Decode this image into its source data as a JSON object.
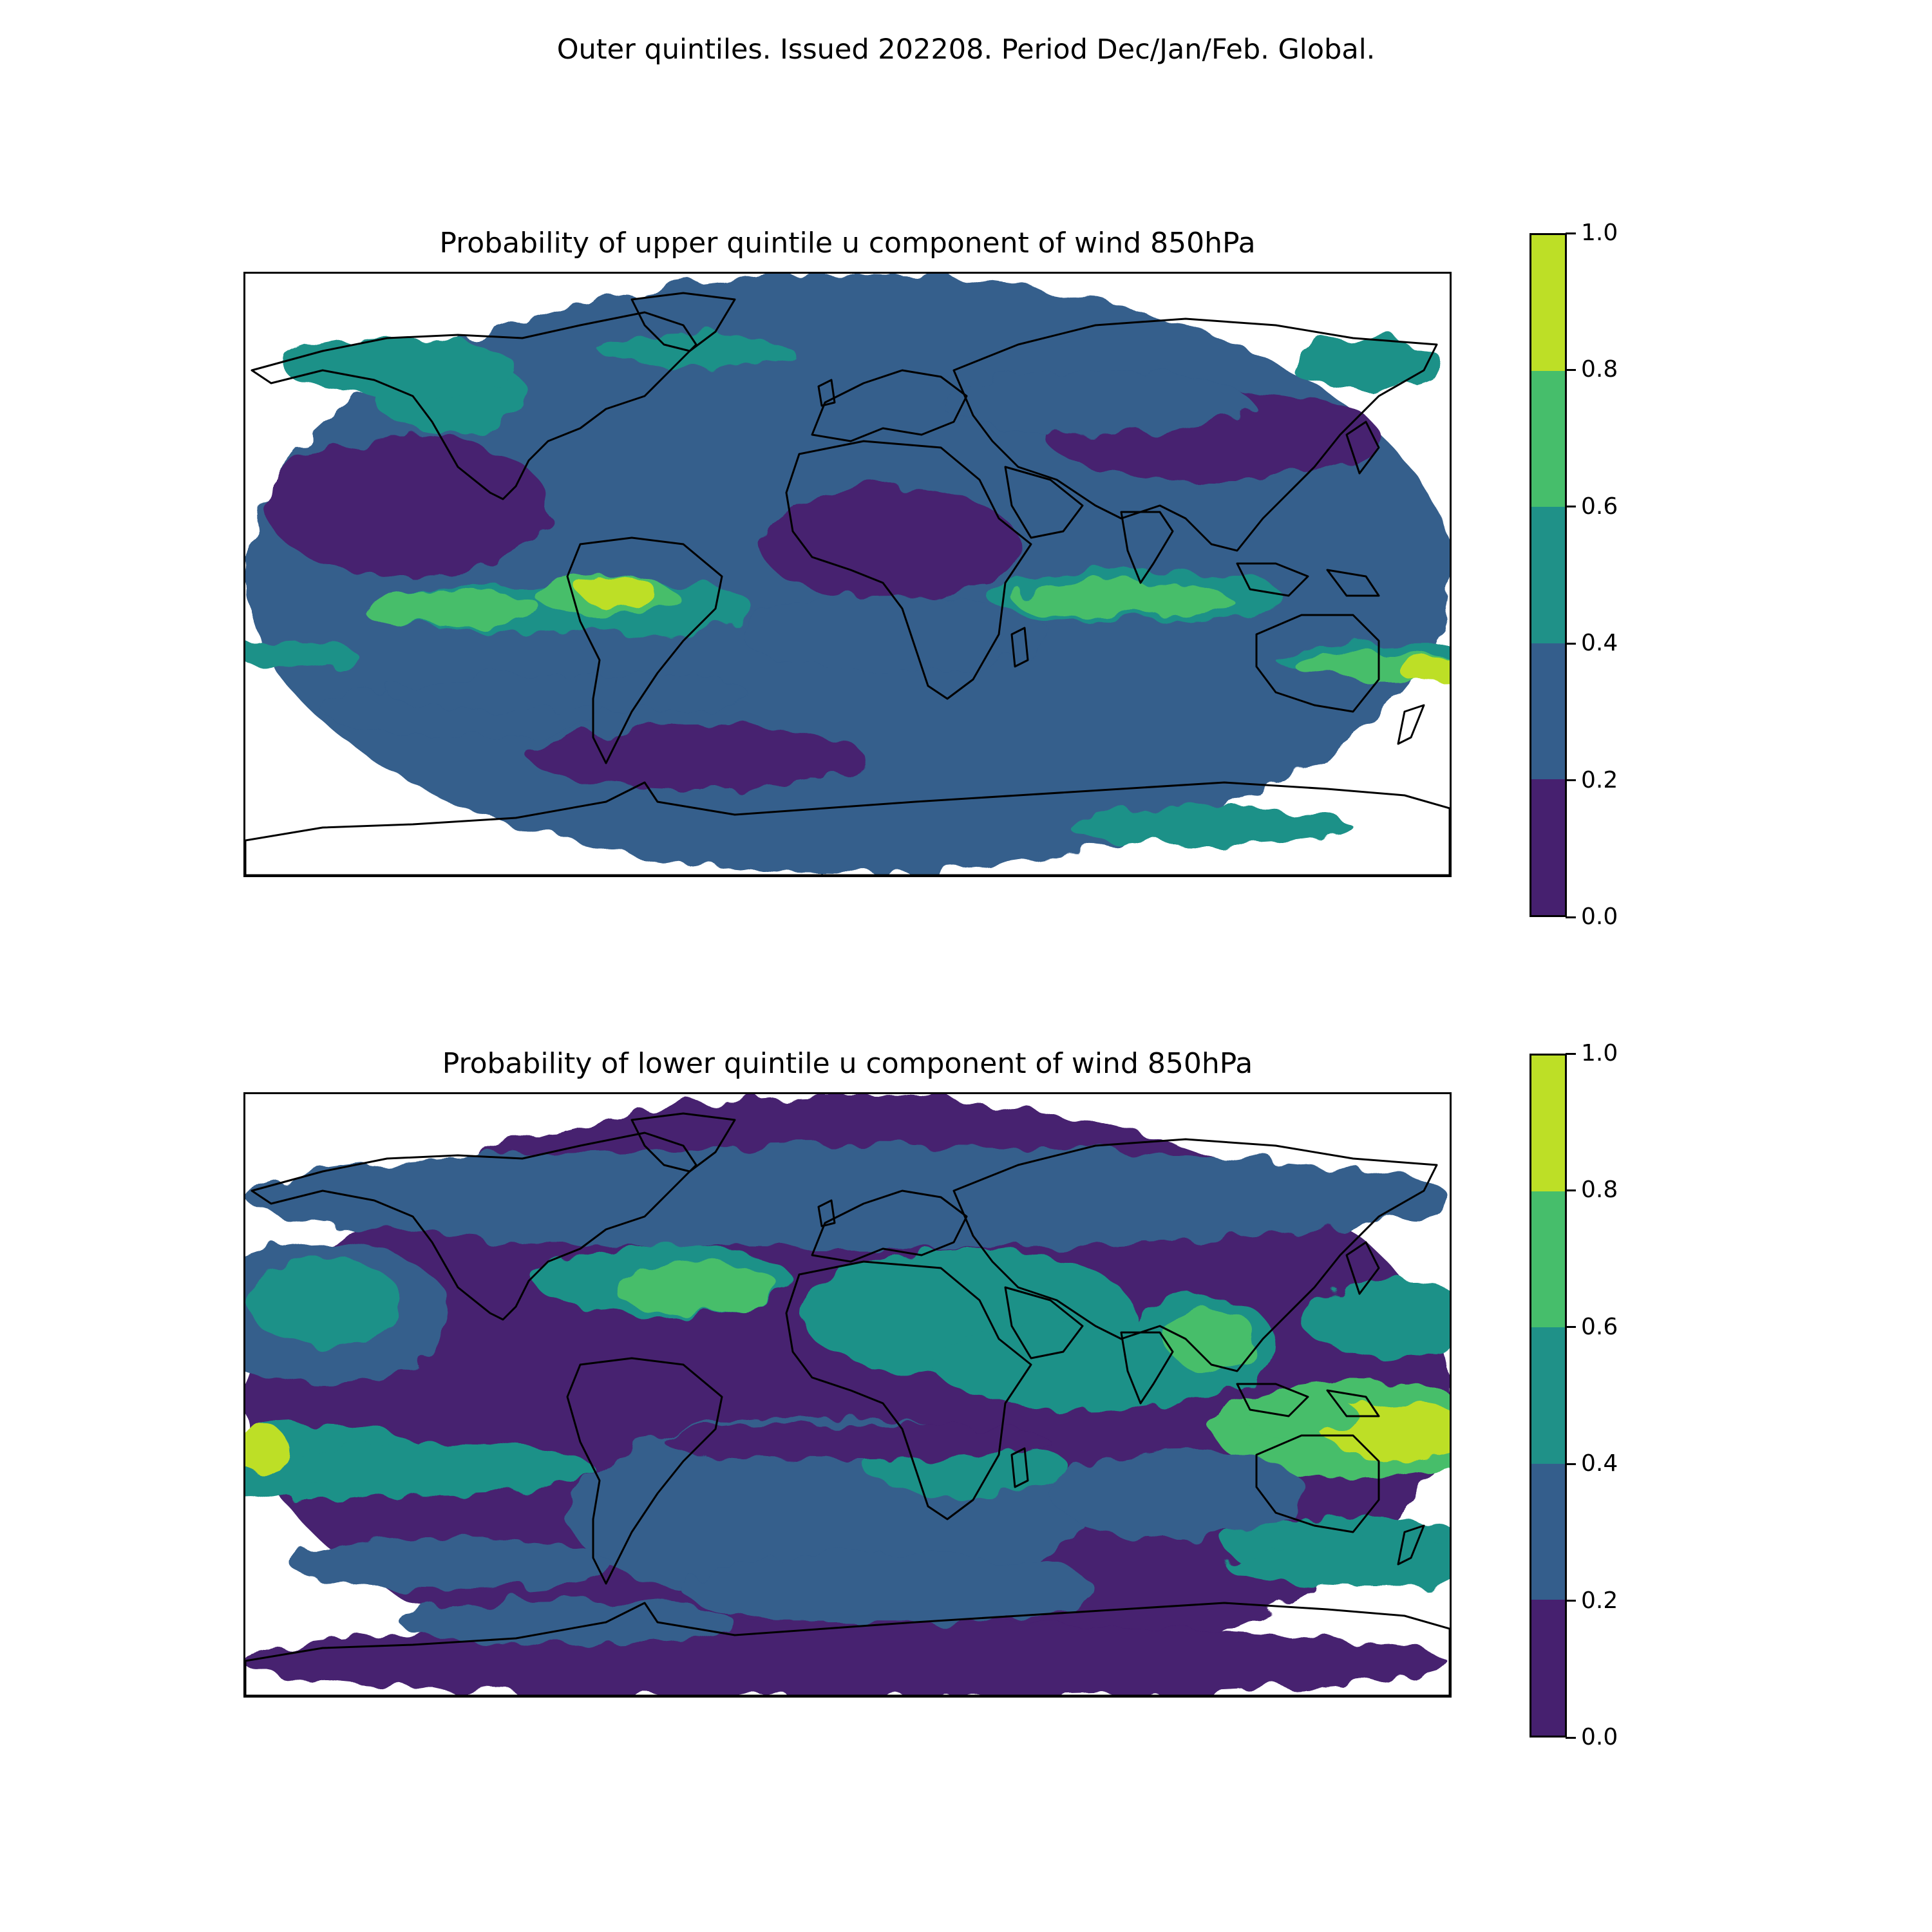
{
  "figure": {
    "title": "Outer quintiles. Issued 202208. Period Dec/Jan/Feb. Global."
  },
  "colorbar": {
    "ticks": [
      "0.0",
      "0.2",
      "0.4",
      "0.6",
      "0.8",
      "1.0"
    ],
    "levels": [
      0.0,
      0.2,
      0.4,
      0.6,
      0.8,
      1.0
    ],
    "colors": [
      "#46206f",
      "#345e8c",
      "#1f9188",
      "#46be6b",
      "#bddf26"
    ]
  },
  "chart_data": [
    {
      "type": "heatmap",
      "title": "Probability of upper quintile u component of wind 850hPa",
      "projection": "equirectangular, global",
      "value_range": [
        0.0,
        1.0
      ],
      "bins": [
        0.0,
        0.2,
        0.4,
        0.6,
        0.8,
        1.0
      ],
      "features": {
        "tropical_band_pacific_atlantic": [
          0.4,
          0.6
        ],
        "indian_ocean_band": [
          0.6,
          0.8
        ],
        "north_australia_max": [
          0.8,
          1.0
        ],
        "north_pacific_band": [
          0.4,
          0.6
        ]
      }
    },
    {
      "type": "heatmap",
      "title": "Probability of lower quintile u component of wind 850hPa",
      "projection": "equirectangular, global",
      "value_range": [
        0.0,
        1.0
      ],
      "bins": [
        0.0,
        0.2,
        0.4,
        0.6,
        0.8,
        1.0
      ],
      "features": {
        "west_pacific_equatorial_max": [
          0.8,
          1.0
        ],
        "date_line_equatorial_max": [
          0.8,
          1.0
        ],
        "south_pacific_convergence_band": [
          0.4,
          0.6
        ],
        "north_africa_arabia_band": [
          0.4,
          0.6
        ]
      }
    }
  ]
}
